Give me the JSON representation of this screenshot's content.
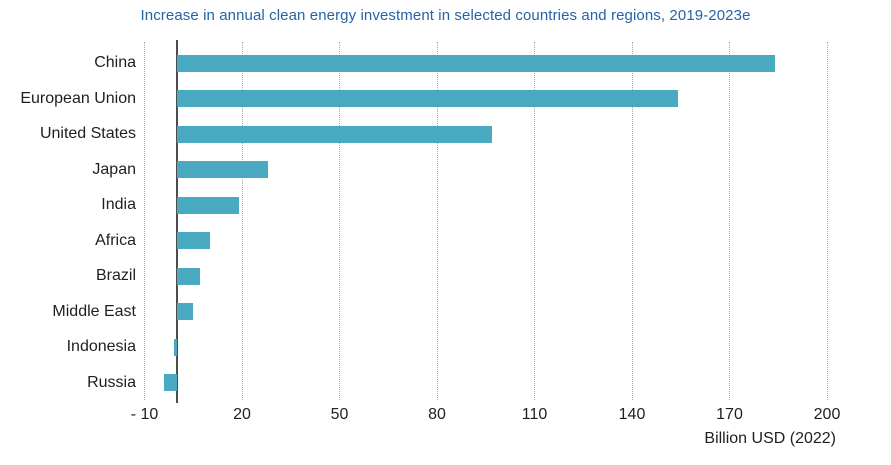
{
  "title": "Increase in annual clean energy investment in selected countries and regions, 2019-2023e",
  "chart_data": {
    "type": "bar",
    "orientation": "horizontal",
    "title": "Increase in annual clean energy investment in selected countries and regions, 2019-2023e",
    "categories": [
      "China",
      "European Union",
      "United States",
      "Japan",
      "India",
      "Africa",
      "Brazil",
      "Middle East",
      "Indonesia",
      "Russia"
    ],
    "values": [
      184,
      154,
      97,
      28,
      19,
      10,
      7,
      5,
      -1,
      -4
    ],
    "xlabel": "Billion USD (2022)",
    "ylabel": "",
    "xlim": [
      -25,
      210
    ],
    "xticks": [
      -10,
      20,
      50,
      80,
      110,
      140,
      170,
      200
    ],
    "xtick_labels": [
      "- 10",
      "20",
      "50",
      "80",
      "110",
      "140",
      "170",
      "200"
    ],
    "grid": "vertical-dotted",
    "legend": "none",
    "colors": {
      "bar": "#49A9C1",
      "title": "#2563A7",
      "axis_text": "#1F1F1F",
      "gridline": "#ABABAB",
      "zero_line": "#4D4D4D",
      "background": "#FFFFFF"
    }
  }
}
